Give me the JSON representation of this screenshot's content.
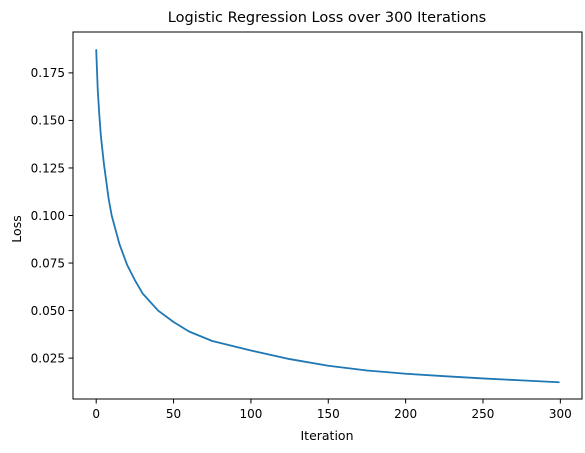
{
  "chart_data": {
    "type": "line",
    "title": "Logistic Regression Loss over 300 Iterations",
    "xlabel": "Iteration",
    "ylabel": "Loss",
    "xlim": [
      -15,
      314
    ],
    "ylim": [
      0.0035,
      0.1965
    ],
    "xticks": [
      0,
      50,
      100,
      150,
      200,
      250,
      300
    ],
    "xtick_labels": [
      "0",
      "50",
      "100",
      "150",
      "200",
      "250",
      "300"
    ],
    "yticks": [
      0.025,
      0.05,
      0.075,
      0.1,
      0.125,
      0.15,
      0.175
    ],
    "ytick_labels": [
      "0.025",
      "0.050",
      "0.075",
      "0.100",
      "0.125",
      "0.150",
      "0.175"
    ],
    "grid": false,
    "series": [
      {
        "color": "#1f77b4",
        "x": [
          0,
          1,
          2,
          3,
          5,
          8,
          10,
          15,
          20,
          25,
          30,
          40,
          50,
          60,
          75,
          100,
          125,
          150,
          175,
          200,
          225,
          250,
          275,
          299
        ],
        "y": [
          0.187,
          0.166,
          0.153,
          0.142,
          0.127,
          0.109,
          0.1,
          0.085,
          0.074,
          0.066,
          0.059,
          0.05,
          0.044,
          0.039,
          0.034,
          0.029,
          0.0245,
          0.021,
          0.0185,
          0.0168,
          0.0155,
          0.0143,
          0.0133,
          0.0123
        ]
      }
    ]
  }
}
